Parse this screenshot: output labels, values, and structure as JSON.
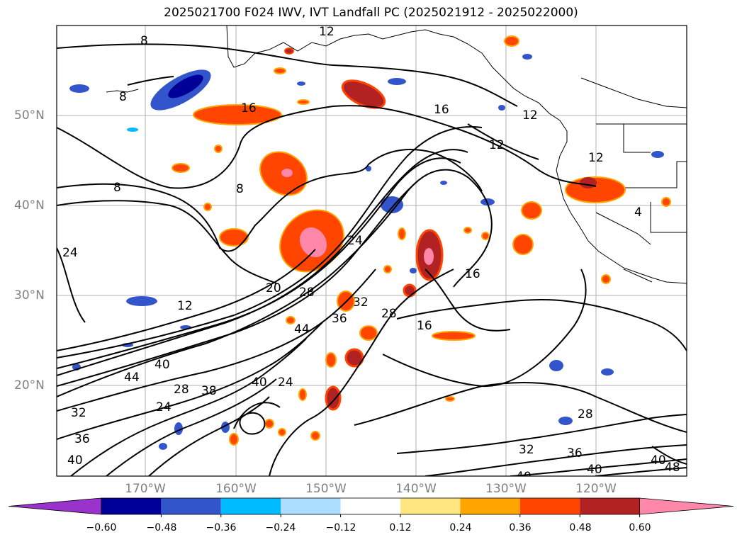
{
  "title": "2025021700 F024 IWV, IVT Landfall PC (2025021912 - 2025022000)",
  "lat_labels": [
    "50°N",
    "40°N",
    "30°N",
    "20°N"
  ],
  "lon_labels": [
    "170°W",
    "160°W",
    "150°W",
    "140°W",
    "130°W",
    "120°W"
  ],
  "colorbar": {
    "tick_labels": [
      "−0.60",
      "−0.48",
      "−0.36",
      "−0.24",
      "−0.12",
      "0.12",
      "0.24",
      "0.36",
      "0.48",
      "0.60"
    ],
    "colors": [
      "#9933cc",
      "#000099",
      "#3355cc",
      "#00bbff",
      "#aaddff",
      "#ffffff",
      "#ffe680",
      "#ffa500",
      "#ff4500",
      "#b22222",
      "#ff88aa"
    ]
  },
  "contour_labels": [
    "8",
    "12",
    "8",
    "16",
    "16",
    "12",
    "12",
    "8",
    "8",
    "4",
    "24",
    "12",
    "20",
    "28",
    "24",
    "44",
    "36",
    "32",
    "28",
    "16",
    "16",
    "44",
    "40",
    "40",
    "24",
    "28",
    "38",
    "24",
    "32",
    "36",
    "40",
    "28",
    "32",
    "36",
    "40",
    "40",
    "40",
    "48",
    "12"
  ]
}
